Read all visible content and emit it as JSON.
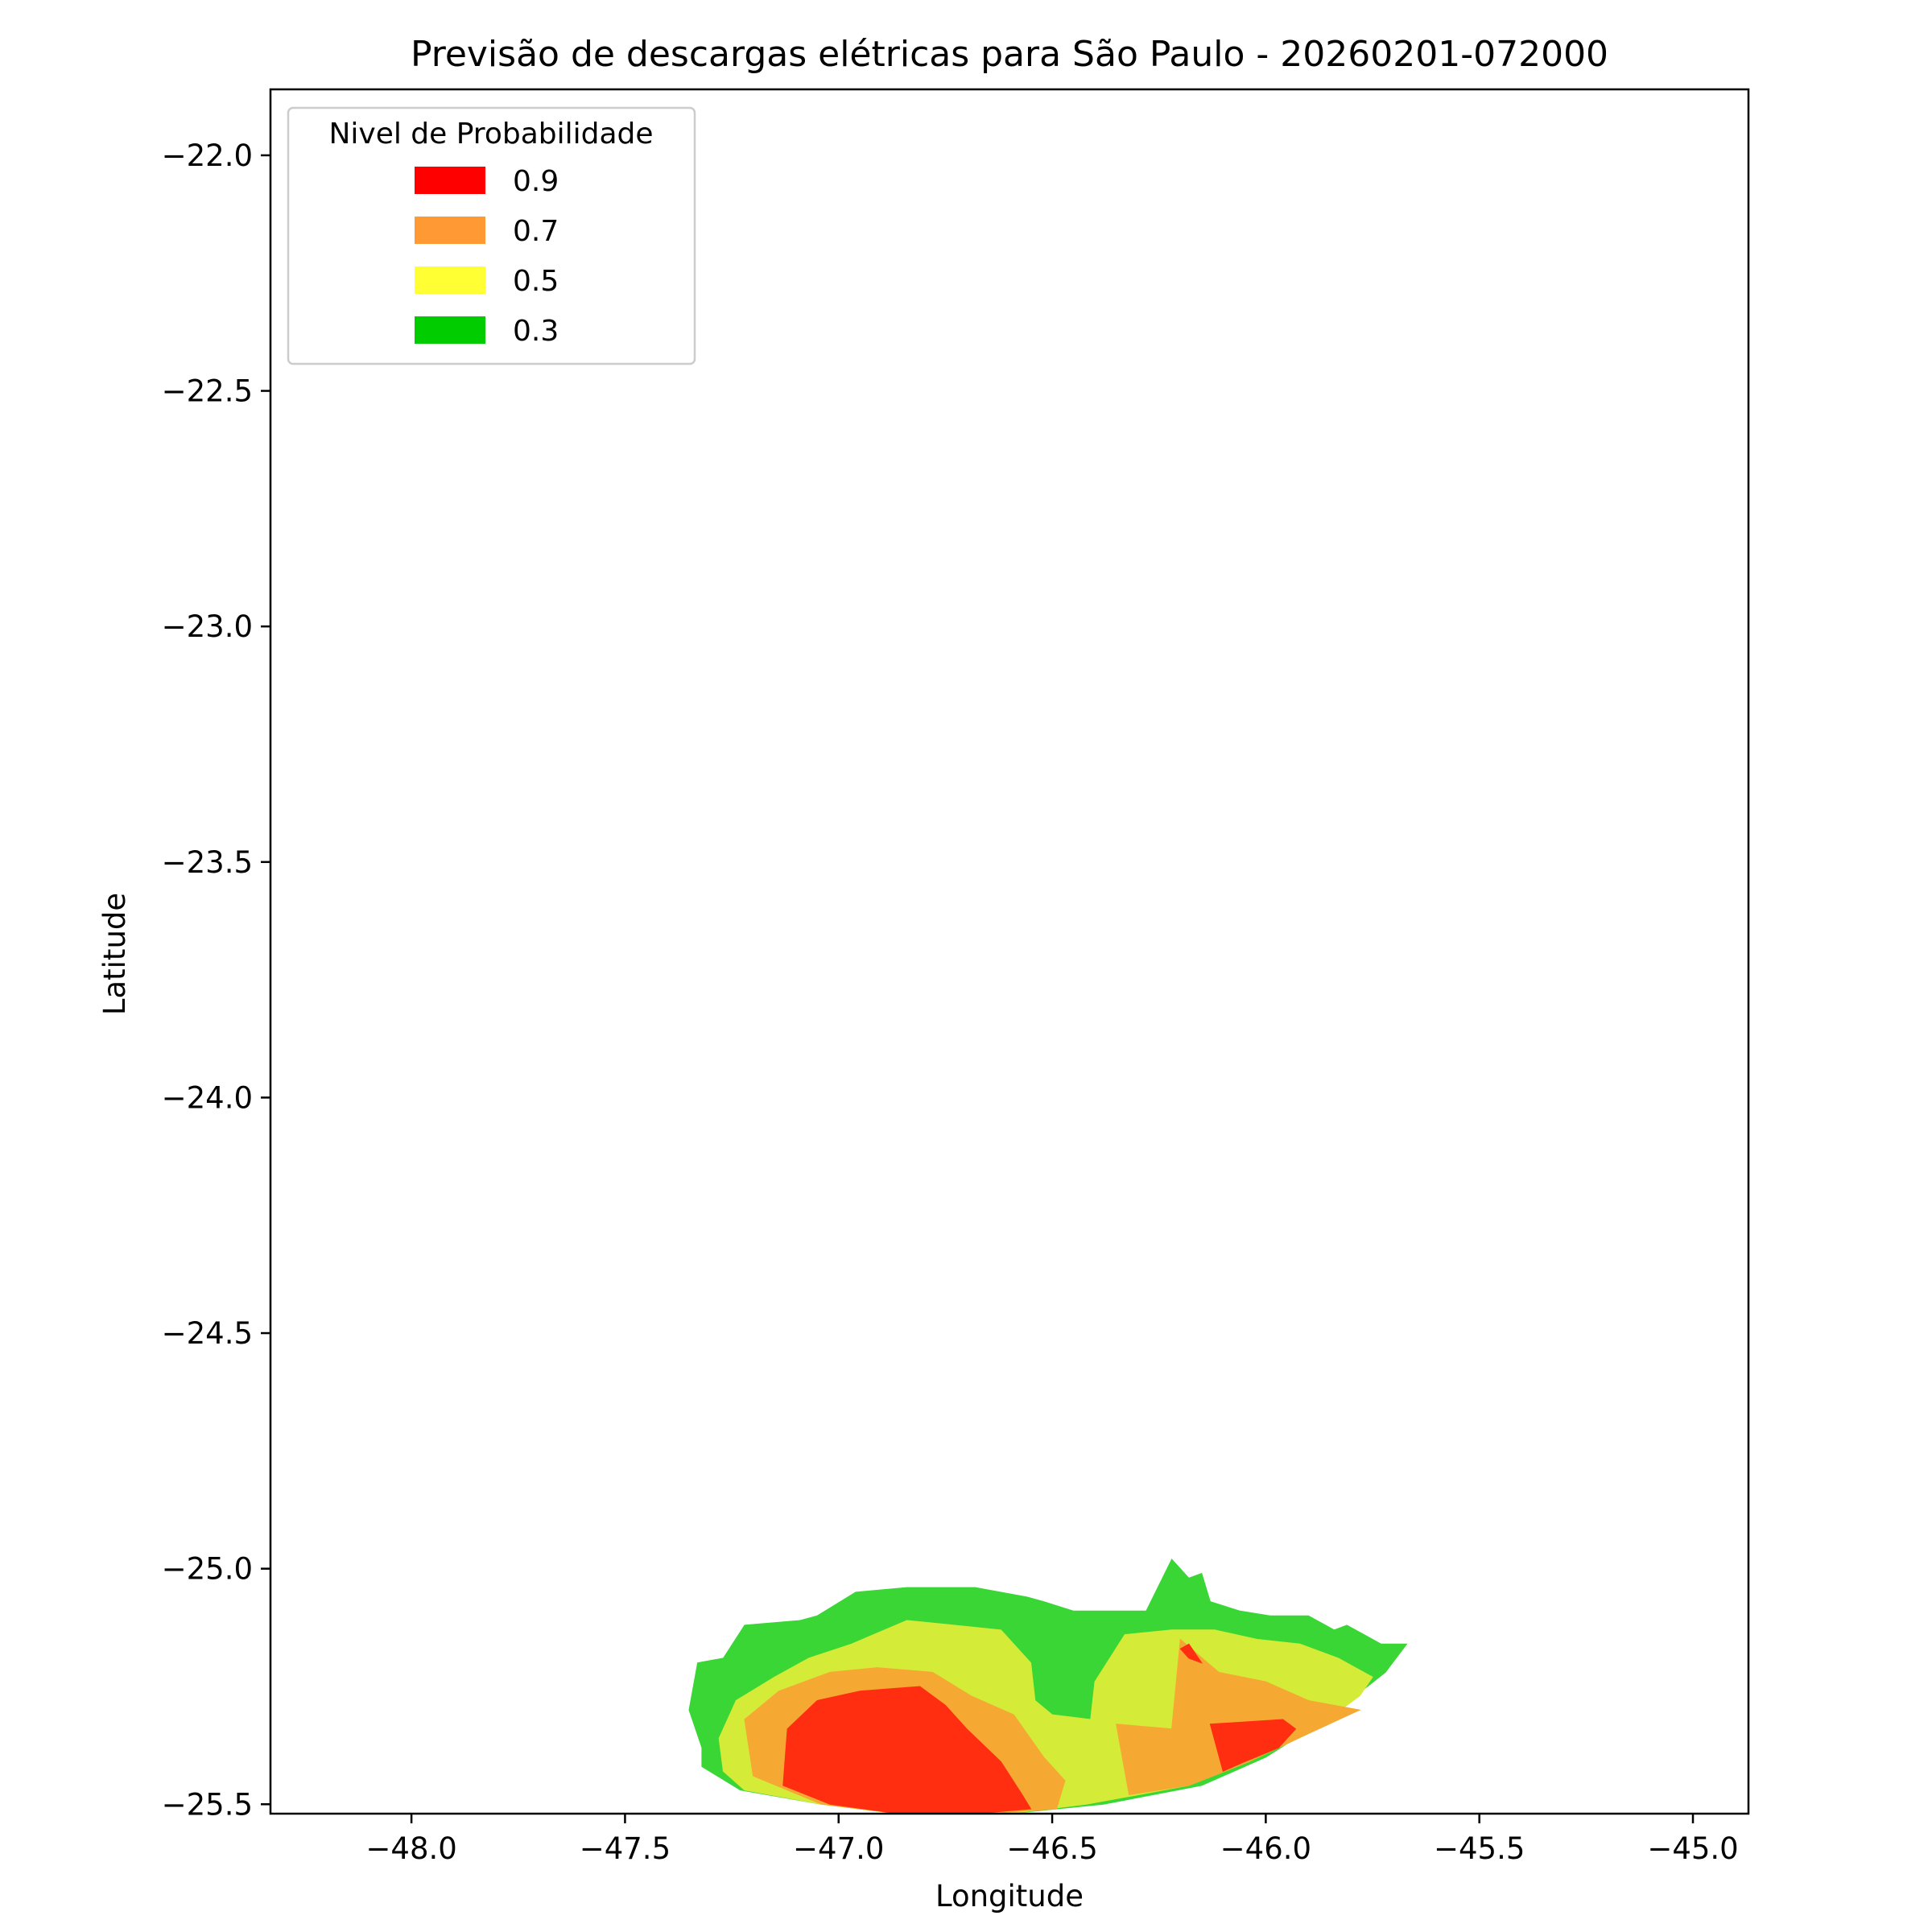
{
  "chart_data": {
    "type": "heatmap",
    "title": "Previsão de descargas elétricas para São Paulo - 20260201-072000",
    "xlabel": "Longitude",
    "ylabel": "Latitude",
    "xlim": [
      -48.33,
      -44.87
    ],
    "ylim": [
      -25.52,
      -21.86
    ],
    "x_ticks": [
      "−48.0",
      "−47.5",
      "−47.0",
      "−46.5",
      "−46.0",
      "−45.5",
      "−45.0"
    ],
    "x_tick_values": [
      -48.0,
      -47.5,
      -47.0,
      -46.5,
      -46.0,
      -45.5,
      -45.0
    ],
    "y_ticks": [
      "−22.0",
      "−22.5",
      "−23.0",
      "−23.5",
      "−24.0",
      "−24.5",
      "−25.0",
      "−25.5"
    ],
    "y_tick_values": [
      -22.0,
      -22.5,
      -23.0,
      -23.5,
      -24.0,
      -24.5,
      -25.0,
      -25.5
    ],
    "grid": false,
    "legend": {
      "title": "Nivel de Probabilidade",
      "position": "top-left",
      "entries": [
        {
          "label": "0.9",
          "color": "#ff0000"
        },
        {
          "label": "0.7",
          "color": "#ff9933"
        },
        {
          "label": "0.5",
          "color": "#ffff33"
        },
        {
          "label": "0.3",
          "color": "#00cc00"
        }
      ]
    },
    "regions": [
      {
        "level": "0.3",
        "color": "#3ad636",
        "polygon": [
          [
            -47.32,
            -25.42
          ],
          [
            -47.32,
            -25.38
          ],
          [
            -47.35,
            -25.3
          ],
          [
            -47.33,
            -25.2
          ],
          [
            -47.27,
            -25.19
          ],
          [
            -47.22,
            -25.12
          ],
          [
            -47.09,
            -25.11
          ],
          [
            -47.05,
            -25.1
          ],
          [
            -46.96,
            -25.05
          ],
          [
            -46.84,
            -25.04
          ],
          [
            -46.68,
            -25.04
          ],
          [
            -46.56,
            -25.06
          ],
          [
            -46.52,
            -25.07
          ],
          [
            -46.45,
            -25.09
          ],
          [
            -46.38,
            -25.09
          ],
          [
            -46.28,
            -25.09
          ],
          [
            -46.22,
            -24.98
          ],
          [
            -46.18,
            -25.02
          ],
          [
            -46.15,
            -25.01
          ],
          [
            -46.13,
            -25.07
          ],
          [
            -46.06,
            -25.09
          ],
          [
            -45.99,
            -25.1
          ],
          [
            -45.9,
            -25.1
          ],
          [
            -45.84,
            -25.13
          ],
          [
            -45.81,
            -25.12
          ],
          [
            -45.73,
            -25.16
          ],
          [
            -45.67,
            -25.16
          ],
          [
            -45.72,
            -25.22
          ],
          [
            -45.86,
            -25.32
          ],
          [
            -46.0,
            -25.4
          ],
          [
            -46.15,
            -25.46
          ],
          [
            -46.38,
            -25.5
          ],
          [
            -46.6,
            -25.52
          ],
          [
            -46.86,
            -25.52
          ],
          [
            -47.04,
            -25.5
          ],
          [
            -47.23,
            -25.47
          ]
        ]
      },
      {
        "level": "0.5",
        "color": "#d4ec38",
        "polygon": [
          [
            -47.22,
            -25.47
          ],
          [
            -47.27,
            -25.43
          ],
          [
            -47.28,
            -25.36
          ],
          [
            -47.24,
            -25.28
          ],
          [
            -47.15,
            -25.23
          ],
          [
            -47.07,
            -25.19
          ],
          [
            -46.97,
            -25.16
          ],
          [
            -46.84,
            -25.11
          ],
          [
            -46.73,
            -25.12
          ],
          [
            -46.62,
            -25.13
          ],
          [
            -46.55,
            -25.2
          ],
          [
            -46.54,
            -25.28
          ],
          [
            -46.5,
            -25.31
          ],
          [
            -46.41,
            -25.32
          ],
          [
            -46.4,
            -25.24
          ],
          [
            -46.33,
            -25.14
          ],
          [
            -46.22,
            -25.13
          ],
          [
            -46.12,
            -25.13
          ],
          [
            -46.02,
            -25.15
          ],
          [
            -45.92,
            -25.16
          ],
          [
            -45.83,
            -25.19
          ],
          [
            -45.75,
            -25.23
          ],
          [
            -45.78,
            -25.27
          ],
          [
            -45.9,
            -25.35
          ],
          [
            -46.04,
            -25.41
          ],
          [
            -46.18,
            -25.46
          ],
          [
            -46.42,
            -25.5
          ],
          [
            -46.6,
            -25.52
          ],
          [
            -46.86,
            -25.52
          ],
          [
            -47.04,
            -25.5
          ]
        ]
      },
      {
        "level": "0.7",
        "color": "#f5a933",
        "polygon": [
          [
            -47.2,
            -25.44
          ],
          [
            -47.22,
            -25.32
          ],
          [
            -47.14,
            -25.26
          ],
          [
            -47.02,
            -25.22
          ],
          [
            -46.91,
            -25.21
          ],
          [
            -46.78,
            -25.22
          ],
          [
            -46.69,
            -25.27
          ],
          [
            -46.59,
            -25.31
          ],
          [
            -46.52,
            -25.4
          ],
          [
            -46.47,
            -25.45
          ],
          [
            -46.49,
            -25.51
          ],
          [
            -46.66,
            -25.52
          ],
          [
            -46.86,
            -25.52
          ],
          [
            -47.04,
            -25.5
          ]
        ]
      },
      {
        "level": "0.7",
        "color": "#f5a933",
        "polygon": [
          [
            -46.35,
            -25.33
          ],
          [
            -46.22,
            -25.34
          ],
          [
            -46.2,
            -25.15
          ],
          [
            -46.11,
            -25.22
          ],
          [
            -46.0,
            -25.24
          ],
          [
            -45.9,
            -25.28
          ],
          [
            -45.78,
            -25.3
          ],
          [
            -45.9,
            -25.35
          ],
          [
            -46.04,
            -25.41
          ],
          [
            -46.18,
            -25.46
          ],
          [
            -46.32,
            -25.48
          ]
        ]
      },
      {
        "level": "0.9",
        "color": "#ff2e10",
        "polygon": [
          [
            -47.13,
            -25.46
          ],
          [
            -47.12,
            -25.34
          ],
          [
            -47.05,
            -25.28
          ],
          [
            -46.95,
            -25.26
          ],
          [
            -46.81,
            -25.25
          ],
          [
            -46.75,
            -25.29
          ],
          [
            -46.7,
            -25.34
          ],
          [
            -46.62,
            -25.41
          ],
          [
            -46.57,
            -25.48
          ],
          [
            -46.55,
            -25.51
          ],
          [
            -46.68,
            -25.52
          ],
          [
            -46.86,
            -25.52
          ],
          [
            -47.02,
            -25.5
          ]
        ]
      },
      {
        "level": "0.9",
        "color": "#ff2e10",
        "polygon": [
          [
            -46.13,
            -25.33
          ],
          [
            -45.96,
            -25.32
          ],
          [
            -45.93,
            -25.34
          ],
          [
            -45.97,
            -25.38
          ],
          [
            -46.05,
            -25.41
          ],
          [
            -46.1,
            -25.43
          ]
        ]
      },
      {
        "level": "0.9",
        "color": "#ff2e10",
        "polygon": [
          [
            -46.2,
            -25.17
          ],
          [
            -46.18,
            -25.19
          ],
          [
            -46.15,
            -25.2
          ],
          [
            -46.18,
            -25.16
          ]
        ]
      }
    ]
  }
}
